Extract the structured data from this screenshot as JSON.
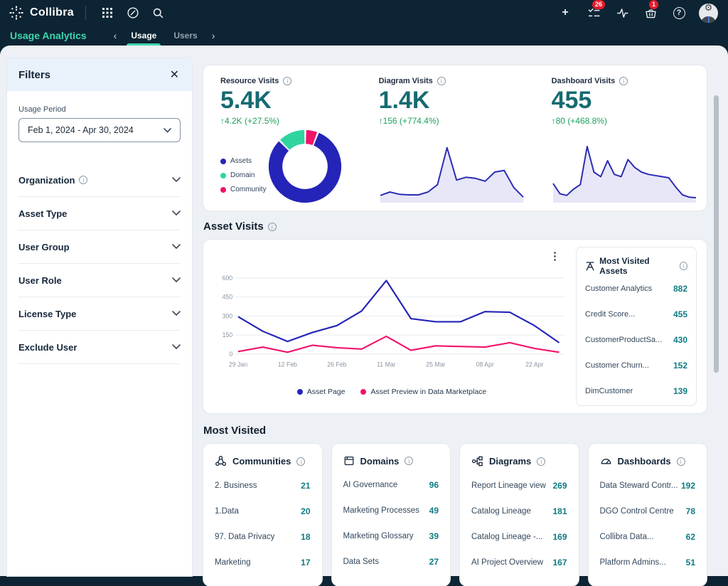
{
  "topbar": {
    "brand": "Collibra",
    "plus_glyph": "+",
    "help_glyph": "?",
    "tasks_badge": "26",
    "basket_badge": "1"
  },
  "subnav": {
    "title": "Usage Analytics",
    "chevron_left": "‹",
    "chevron_right": "›",
    "tabs": [
      {
        "label": "Usage"
      },
      {
        "label": "Users"
      }
    ]
  },
  "filters": {
    "title": "Filters",
    "close_glyph": "✕",
    "info_glyph": "i",
    "usage_period_label": "Usage Period",
    "usage_period_value": "Feb 1, 2024 - Apr 30, 2024",
    "sections": [
      {
        "label": "Organization",
        "info": true
      },
      {
        "label": "Asset Type",
        "info": false
      },
      {
        "label": "User Group",
        "info": false
      },
      {
        "label": "User Role",
        "info": false
      },
      {
        "label": "License Type",
        "info": false
      },
      {
        "label": "Exclude User",
        "info": false
      }
    ]
  },
  "stats": [
    {
      "label": "Resource Visits",
      "value": "5.4K",
      "delta": "↑4.2K (+27.5%)"
    },
    {
      "label": "Diagram Visits",
      "value": "1.4K",
      "delta": "↑156 (+774.4%)"
    },
    {
      "label": "Dashboard Visits",
      "value": "455",
      "delta": "↑80 (+468.8%)"
    }
  ],
  "asset_visits": {
    "title": "Asset Visits",
    "kebab_glyph": "⋮",
    "panel": {
      "title": "Most Visited Assets",
      "items": [
        {
          "name": "Customer Analytics",
          "value": "882"
        },
        {
          "name": "Credit Score...",
          "value": "455"
        },
        {
          "name": "CustomerProductSa...",
          "value": "430"
        },
        {
          "name": "Customer Churn...",
          "value": "152"
        },
        {
          "name": "DimCustomer",
          "value": "139"
        }
      ]
    }
  },
  "most_visited": {
    "title": "Most Visited",
    "cards": [
      {
        "title": "Communities",
        "icon": "communities-icon",
        "items": [
          {
            "name": "2. Business",
            "value": "21"
          },
          {
            "name": "1.Data",
            "value": "20"
          },
          {
            "name": "97. Data Privacy",
            "value": "18"
          },
          {
            "name": "Marketing",
            "value": "17"
          }
        ]
      },
      {
        "title": "Domains",
        "icon": "domains-icon",
        "items": [
          {
            "name": "AI Governance",
            "value": "96"
          },
          {
            "name": "Marketing Processes",
            "value": "49"
          },
          {
            "name": "Marketing Glossary",
            "value": "39"
          },
          {
            "name": "Data Sets",
            "value": "27"
          }
        ]
      },
      {
        "title": "Diagrams",
        "icon": "diagrams-icon",
        "items": [
          {
            "name": "Report Lineage view",
            "value": "269"
          },
          {
            "name": "Catalog Lineage",
            "value": "181"
          },
          {
            "name": "Catalog Lineage -...",
            "value": "169"
          },
          {
            "name": "AI Project Overview",
            "value": "167"
          }
        ]
      },
      {
        "title": "Dashboards",
        "icon": "dashboards-icon",
        "items": [
          {
            "name": "Data Steward Contr...",
            "value": "192"
          },
          {
            "name": "DGO Control Centre",
            "value": "78"
          },
          {
            "name": "Collibra Data...",
            "value": "62"
          },
          {
            "name": "Platform Admins...",
            "value": "51"
          }
        ]
      }
    ]
  },
  "chart_data": [
    {
      "id": "resource-donut",
      "type": "pie",
      "labels": [
        "Assets",
        "Domain",
        "Community"
      ],
      "values": [
        83,
        12,
        5
      ],
      "colors": [
        "#2424b8",
        "#2fd5a0",
        "#f2136b"
      ],
      "legend_position": "left"
    },
    {
      "id": "diagram-sparkline",
      "type": "area",
      "values": [
        9,
        15,
        11,
        10,
        10,
        15,
        28,
        93,
        36,
        41,
        39,
        34,
        50,
        53,
        23,
        6
      ],
      "color": "#2d2db5",
      "fill": "#e7e7f8"
    },
    {
      "id": "dashboard-sparkline",
      "type": "area",
      "values": [
        30,
        12,
        9,
        20,
        28,
        95,
        50,
        42,
        70,
        46,
        42,
        72,
        58,
        50,
        46,
        44,
        42,
        40,
        24,
        10,
        6,
        5
      ],
      "color": "#2d2db5",
      "fill": "#e7e7f8"
    },
    {
      "id": "asset-visits",
      "type": "line",
      "x_labels": [
        "29 Jan",
        "12 Feb",
        "26 Feb",
        "11 Mar",
        "25 Mar",
        "08 Apr",
        "22 Apr"
      ],
      "y_ticks": [
        0,
        150,
        300,
        450,
        600
      ],
      "ylim": [
        0,
        600
      ],
      "grid": true,
      "legend_position": "bottom",
      "series": [
        {
          "name": "Asset Page",
          "color": "#2424b8",
          "values": [
            295,
            180,
            100,
            170,
            225,
            340,
            580,
            280,
            255,
            255,
            335,
            330,
            225,
            90
          ]
        },
        {
          "name": "Asset Preview in Data Marketplace",
          "color": "#f2136b",
          "values": [
            20,
            55,
            15,
            70,
            50,
            40,
            140,
            30,
            65,
            60,
            55,
            90,
            45,
            15
          ]
        }
      ]
    }
  ],
  "colors": {
    "header_navy": "#0d2434",
    "accent_teal": "#3fd6ad",
    "stat_teal": "#156b71",
    "delta_green": "#1fa05e",
    "chart_blue": "#2424b8",
    "chart_pink": "#f2136b",
    "chart_mint": "#2fd5a0",
    "badge_red": "#e8192c",
    "value_teal": "#0f7b83"
  }
}
